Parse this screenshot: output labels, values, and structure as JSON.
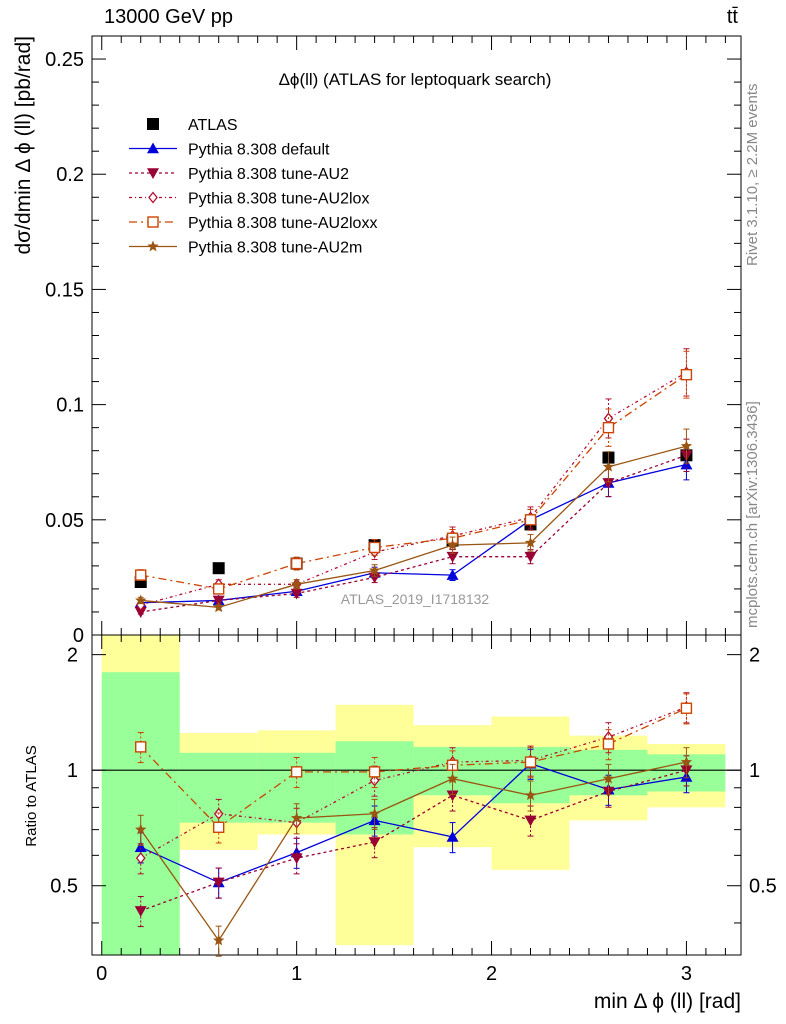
{
  "header": {
    "energy_label": "13000 GeV pp",
    "process_label": "tt̄"
  },
  "side_labels": {
    "rivet": "Rivet 3.1.10, ≥ 2.2M events",
    "mcplots": "mcplots.cern.ch [arXiv:1306.3436]"
  },
  "chart_data": [
    {
      "type": "line",
      "title": "Δϕ(ll) (ATLAS for leptoquark search)",
      "watermark": "ATLAS_2019_I1718132",
      "ylabel": "dσ/dmin Δ ϕ (ll) [pb/rad]",
      "xlim": [
        -0.05,
        3.28
      ],
      "ylim": [
        0,
        0.26
      ],
      "yticks": [
        0,
        0.05,
        0.1,
        0.15,
        0.2,
        0.25
      ],
      "ytick_labels": [
        "0",
        "0.05",
        "0.1",
        "0.15",
        "0.2",
        "0.25"
      ],
      "x": [
        0.2,
        0.6,
        1.0,
        1.4,
        1.8,
        2.2,
        2.6,
        3.0
      ],
      "series": [
        {
          "name": "ATLAS",
          "color": "#000000",
          "marker": "square",
          "values": [
            0.023,
            0.029,
            0.031,
            0.039,
            0.041,
            0.048,
            0.077,
            0.078
          ]
        },
        {
          "name": "Pythia 8.308 default",
          "color": "#0000dd",
          "marker": "triangle-up",
          "dash": "solid",
          "values": [
            0.014,
            0.015,
            0.019,
            0.027,
            0.026,
            0.05,
            0.066,
            0.074
          ]
        },
        {
          "name": "Pythia 8.308 tune-AU2",
          "color": "#990033",
          "marker": "triangle-down",
          "dash": "3,3",
          "values": [
            0.01,
            0.015,
            0.018,
            0.025,
            0.034,
            0.034,
            0.066,
            0.078
          ]
        },
        {
          "name": "Pythia 8.308 tune-AU2lox",
          "color": "#b30e30",
          "marker": "diamond",
          "dash": "3,3,1,3",
          "values": [
            0.013,
            0.022,
            0.022,
            0.036,
            0.043,
            0.051,
            0.094,
            0.114
          ]
        },
        {
          "name": "Pythia 8.308 tune-AU2loxx",
          "color": "#cc4400",
          "marker": "open-square",
          "dash": "8,4,2,4",
          "values": [
            0.026,
            0.02,
            0.031,
            0.038,
            0.042,
            0.05,
            0.09,
            0.113
          ]
        },
        {
          "name": "Pythia 8.308 tune-AU2m",
          "color": "#995511",
          "marker": "star",
          "dash": "solid",
          "values": [
            0.015,
            0.012,
            0.022,
            0.028,
            0.039,
            0.04,
            0.073,
            0.082
          ]
        }
      ]
    },
    {
      "type": "line",
      "xlabel": "min Δ ϕ (ll) [rad]",
      "ylabel": "Ratio to ATLAS",
      "xlim": [
        -0.05,
        3.28
      ],
      "ylim": [
        0.33,
        2.25
      ],
      "xticks": [
        0,
        1,
        2,
        3
      ],
      "xtick_labels": [
        "0",
        "1",
        "2",
        "3"
      ],
      "yticks": [
        0.5,
        1,
        2
      ],
      "ytick_labels": [
        "0.5",
        "1",
        "2"
      ],
      "reference_line": 1,
      "bands": {
        "bin_edges": [
          0.0,
          0.4,
          0.8,
          1.2,
          1.6,
          2.0,
          2.4,
          2.8,
          3.2
        ],
        "inner": {
          "color": "#99ff99",
          "low": [
            0.33,
            0.73,
            0.73,
            0.68,
            0.86,
            0.82,
            0.86,
            0.88
          ],
          "high": [
            1.8,
            1.11,
            1.11,
            1.19,
            1.15,
            1.15,
            1.13,
            1.1
          ]
        },
        "outer": {
          "color": "#ffff99",
          "low": [
            0.33,
            0.62,
            0.68,
            0.35,
            0.63,
            0.55,
            0.74,
            0.8
          ],
          "high": [
            2.25,
            1.25,
            1.27,
            1.48,
            1.31,
            1.38,
            1.23,
            1.17
          ]
        }
      },
      "x": [
        0.2,
        0.6,
        1.0,
        1.4,
        1.8,
        2.2,
        2.6,
        3.0
      ],
      "series": [
        {
          "name": "Pythia 8.308 default",
          "color": "#0000dd",
          "marker": "triangle-up",
          "dash": "solid",
          "values": [
            0.63,
            0.51,
            0.61,
            0.74,
            0.67,
            1.04,
            0.89,
            0.96
          ]
        },
        {
          "name": "Pythia 8.308 tune-AU2",
          "color": "#990033",
          "marker": "triangle-down",
          "dash": "3,3",
          "values": [
            0.43,
            0.51,
            0.59,
            0.65,
            0.86,
            0.74,
            0.88,
            1.0
          ]
        },
        {
          "name": "Pythia 8.308 tune-AU2lox",
          "color": "#b30e30",
          "marker": "diamond",
          "dash": "3,3,1,3",
          "values": [
            0.59,
            0.77,
            0.73,
            0.94,
            1.05,
            1.06,
            1.22,
            1.46
          ]
        },
        {
          "name": "Pythia 8.308 tune-AU2loxx",
          "color": "#cc4400",
          "marker": "open-square",
          "dash": "8,4,2,4",
          "values": [
            1.15,
            0.71,
            0.99,
            0.99,
            1.03,
            1.05,
            1.17,
            1.45
          ]
        },
        {
          "name": "Pythia 8.308 tune-AU2m",
          "color": "#995511",
          "marker": "star",
          "dash": "solid",
          "values": [
            0.7,
            0.36,
            0.75,
            0.77,
            0.95,
            0.86,
            0.95,
            1.05
          ]
        }
      ]
    }
  ]
}
